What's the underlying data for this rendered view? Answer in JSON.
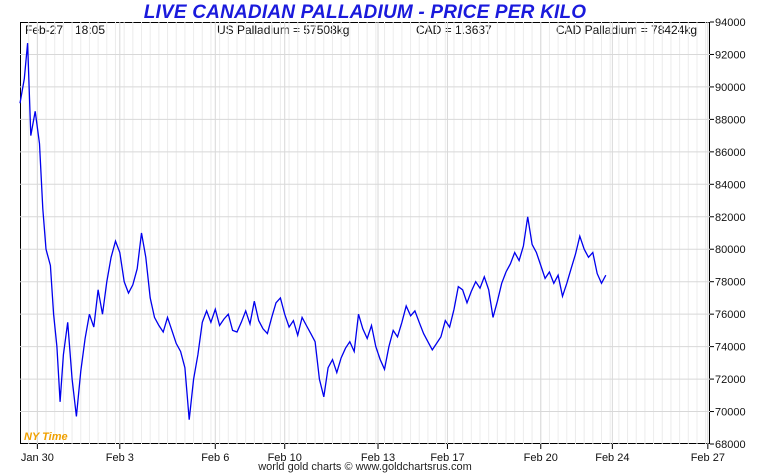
{
  "chart": {
    "title": "LIVE CANADIAN PALLADIUM - PRICE PER KILO",
    "header_date": "Feb-27",
    "header_time": "18:05",
    "us_price": "US Palladium = 57508kg",
    "fx_rate": "CAD = 1.3637",
    "cad_price": "CAD Palladium = 78424kg",
    "timezone_label": "NY Time",
    "footer": "world gold charts © www.goldchartsrus.com"
  },
  "colors": {
    "line": "#0000ee",
    "title": "#1a1adc",
    "grid": "#d8d8d8",
    "timezone": "#f0a000"
  },
  "chart_data": {
    "type": "line",
    "title": "LIVE CANADIAN PALLADIUM - PRICE PER KILO",
    "xlabel": "",
    "ylabel": "",
    "grid": true,
    "y_axis_side": "right",
    "ylim": [
      68000,
      94000
    ],
    "yticks": [
      68000,
      70000,
      72000,
      74000,
      76000,
      78000,
      80000,
      82000,
      84000,
      86000,
      88000,
      90000,
      92000,
      94000
    ],
    "ytick_labels": [
      "68000",
      "70000",
      "72000",
      "74000",
      "76000",
      "78000",
      "80000",
      "82000",
      "84000",
      "86000",
      "88000",
      "90000",
      "92000",
      "94000"
    ],
    "x_range_days": [
      0,
      29
    ],
    "xticks": [
      {
        "label": "Jan 30",
        "day": 0.8
      },
      {
        "label": "Feb 3",
        "day": 4.6
      },
      {
        "label": "Feb 6",
        "day": 9.0
      },
      {
        "label": "Feb 10",
        "day": 12.2
      },
      {
        "label": "Feb 13",
        "day": 16.5
      },
      {
        "label": "Feb 17",
        "day": 19.7
      },
      {
        "label": "Feb 20",
        "day": 24.0
      },
      {
        "label": "Feb 24",
        "day": 27.3
      },
      {
        "label": "Feb 27",
        "day": 31.7
      }
    ],
    "series": [
      {
        "values": [
          [
            0.0,
            89000
          ],
          [
            0.2,
            90500
          ],
          [
            0.35,
            92700
          ],
          [
            0.5,
            87000
          ],
          [
            0.7,
            88500
          ],
          [
            0.9,
            86500
          ],
          [
            1.05,
            82500
          ],
          [
            1.2,
            80000
          ],
          [
            1.4,
            79000
          ],
          [
            1.55,
            76000
          ],
          [
            1.7,
            74000
          ],
          [
            1.85,
            70600
          ],
          [
            2.0,
            73500
          ],
          [
            2.2,
            75500
          ],
          [
            2.4,
            72000
          ],
          [
            2.6,
            69700
          ],
          [
            2.8,
            72500
          ],
          [
            3.0,
            74500
          ],
          [
            3.2,
            76000
          ],
          [
            3.4,
            75200
          ],
          [
            3.6,
            77500
          ],
          [
            3.8,
            76000
          ],
          [
            4.0,
            78000
          ],
          [
            4.2,
            79500
          ],
          [
            4.4,
            80500
          ],
          [
            4.6,
            79800
          ],
          [
            4.8,
            78000
          ],
          [
            5.0,
            77300
          ],
          [
            5.2,
            77800
          ],
          [
            5.4,
            78800
          ],
          [
            5.6,
            81000
          ],
          [
            5.8,
            79500
          ],
          [
            6.0,
            77000
          ],
          [
            6.2,
            75800
          ],
          [
            6.4,
            75300
          ],
          [
            6.6,
            74900
          ],
          [
            6.8,
            75800
          ],
          [
            7.0,
            75000
          ],
          [
            7.2,
            74200
          ],
          [
            7.4,
            73700
          ],
          [
            7.6,
            72700
          ],
          [
            7.8,
            69500
          ],
          [
            8.0,
            72000
          ],
          [
            8.2,
            73500
          ],
          [
            8.4,
            75500
          ],
          [
            8.6,
            76200
          ],
          [
            8.8,
            75500
          ],
          [
            9.0,
            76300
          ],
          [
            9.2,
            75300
          ],
          [
            9.4,
            75700
          ],
          [
            9.6,
            76000
          ],
          [
            9.8,
            75000
          ],
          [
            10.0,
            74900
          ],
          [
            10.2,
            75500
          ],
          [
            10.4,
            76200
          ],
          [
            10.6,
            75400
          ],
          [
            10.8,
            76800
          ],
          [
            11.0,
            75600
          ],
          [
            11.2,
            75100
          ],
          [
            11.4,
            74800
          ],
          [
            11.6,
            75800
          ],
          [
            11.8,
            76700
          ],
          [
            12.0,
            77000
          ],
          [
            12.2,
            76000
          ],
          [
            12.4,
            75200
          ],
          [
            12.6,
            75600
          ],
          [
            12.8,
            74700
          ],
          [
            13.0,
            75800
          ],
          [
            13.2,
            75300
          ],
          [
            13.4,
            74800
          ],
          [
            13.6,
            74300
          ],
          [
            13.8,
            72000
          ],
          [
            14.0,
            70900
          ],
          [
            14.2,
            72700
          ],
          [
            14.4,
            73200
          ],
          [
            14.6,
            72400
          ],
          [
            14.8,
            73300
          ],
          [
            15.0,
            73900
          ],
          [
            15.2,
            74300
          ],
          [
            15.4,
            73700
          ],
          [
            15.6,
            76000
          ],
          [
            15.8,
            75100
          ],
          [
            16.0,
            74500
          ],
          [
            16.2,
            75300
          ],
          [
            16.4,
            74000
          ],
          [
            16.6,
            73200
          ],
          [
            16.8,
            72600
          ],
          [
            17.0,
            74000
          ],
          [
            17.2,
            75000
          ],
          [
            17.4,
            74600
          ],
          [
            17.6,
            75500
          ],
          [
            17.8,
            76500
          ],
          [
            18.0,
            75900
          ],
          [
            18.2,
            76200
          ],
          [
            18.4,
            75500
          ],
          [
            18.6,
            74800
          ],
          [
            18.8,
            74300
          ],
          [
            19.0,
            73800
          ],
          [
            19.2,
            74200
          ],
          [
            19.4,
            74600
          ],
          [
            19.6,
            75600
          ],
          [
            19.8,
            75200
          ],
          [
            20.0,
            76300
          ],
          [
            20.2,
            77700
          ],
          [
            20.4,
            77500
          ],
          [
            20.6,
            76700
          ],
          [
            20.8,
            77400
          ],
          [
            21.0,
            78000
          ],
          [
            21.2,
            77600
          ],
          [
            21.4,
            78300
          ],
          [
            21.6,
            77500
          ],
          [
            21.8,
            75800
          ],
          [
            22.0,
            76800
          ],
          [
            22.2,
            77900
          ],
          [
            22.4,
            78600
          ],
          [
            22.6,
            79100
          ],
          [
            22.8,
            79800
          ],
          [
            23.0,
            79300
          ],
          [
            23.2,
            80200
          ],
          [
            23.4,
            82000
          ],
          [
            23.6,
            80300
          ],
          [
            23.8,
            79800
          ],
          [
            24.0,
            79000
          ],
          [
            24.2,
            78200
          ],
          [
            24.4,
            78600
          ],
          [
            24.6,
            77900
          ],
          [
            24.8,
            78400
          ],
          [
            25.0,
            77100
          ],
          [
            25.2,
            77900
          ],
          [
            25.4,
            78800
          ],
          [
            25.6,
            79700
          ],
          [
            25.8,
            80800
          ],
          [
            26.0,
            80000
          ],
          [
            26.2,
            79500
          ],
          [
            26.4,
            79800
          ],
          [
            26.6,
            78500
          ],
          [
            26.8,
            77900
          ],
          [
            27.0,
            78400
          ]
        ]
      }
    ]
  }
}
